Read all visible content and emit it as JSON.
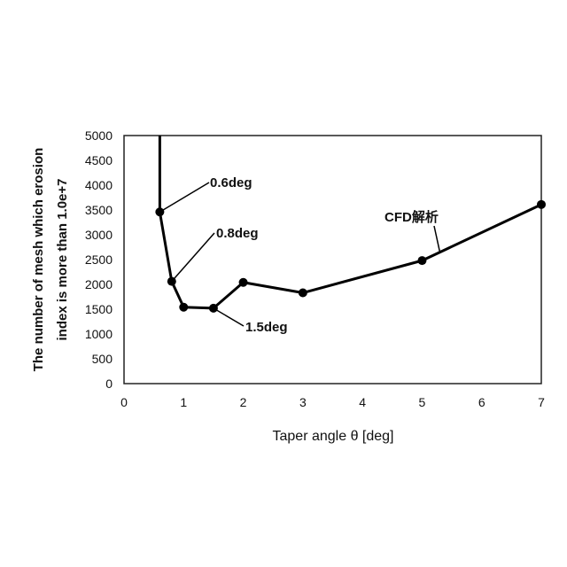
{
  "chart_data": {
    "type": "line",
    "title": "",
    "xlabel": "Taper angle θ [deg]",
    "ylabel_lines": [
      "The number of mesh which erosion",
      "index is more than 1.0e+7"
    ],
    "xlim": [
      0,
      7
    ],
    "ylim": [
      0,
      5000
    ],
    "xticks": [
      0,
      1,
      2,
      3,
      4,
      5,
      6,
      7
    ],
    "yticks": [
      0,
      500,
      1000,
      1500,
      2000,
      2500,
      3000,
      3500,
      4000,
      4500,
      5000
    ],
    "grid": false,
    "series": [
      {
        "x": [
          0.6,
          0.6,
          0.8,
          1.0,
          1.5,
          2.0,
          3.0,
          5.0,
          7.0
        ],
        "y": [
          5000,
          3460,
          2060,
          1540,
          1520,
          2040,
          1830,
          2480,
          3610
        ],
        "markers": [
          false,
          true,
          true,
          true,
          true,
          true,
          true,
          true,
          true
        ],
        "color": "#000000"
      }
    ],
    "annotations": [
      {
        "text": "0.6deg",
        "x": 0.6,
        "y": 3460
      },
      {
        "text": "0.8deg",
        "x": 0.8,
        "y": 2060
      },
      {
        "text": "1.5deg",
        "x": 1.5,
        "y": 1520
      },
      {
        "text": "CFD解析",
        "x": 5.3,
        "y": 2640
      }
    ]
  }
}
